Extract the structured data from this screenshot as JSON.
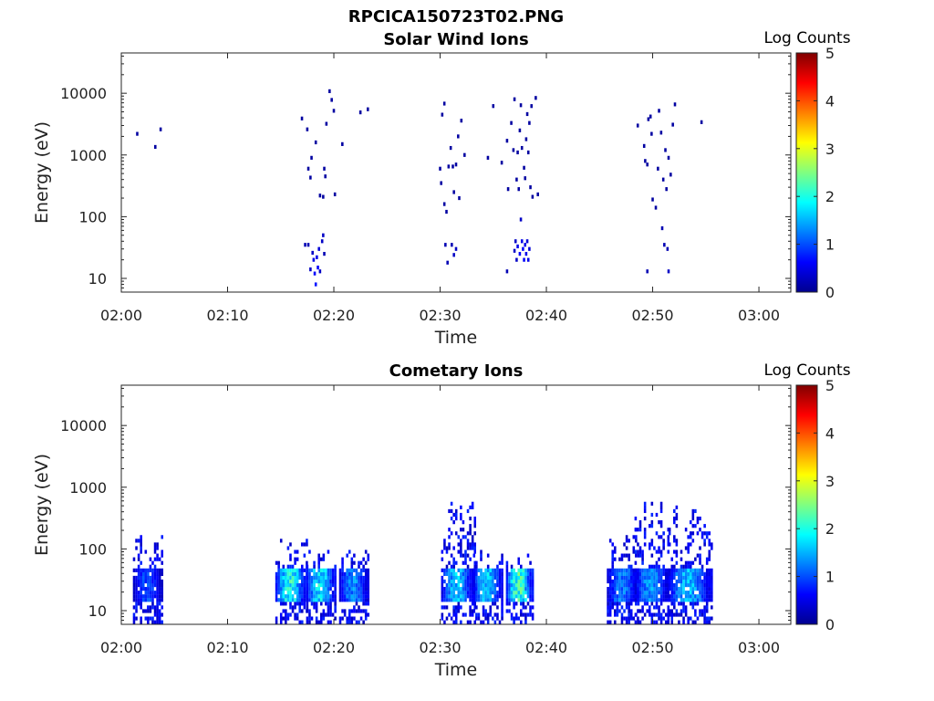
{
  "figure": {
    "filename": "RPCICA150723T02.PNG",
    "colorbar_label": "Log Counts",
    "colorbar_ticks": [
      "0",
      "1",
      "2",
      "3",
      "4",
      "5"
    ],
    "colormap": [
      "#00008f",
      "#0000ff",
      "#0080ff",
      "#00ffff",
      "#80ff80",
      "#ffff00",
      "#ff8000",
      "#ff0000",
      "#800000"
    ]
  },
  "chart_data": [
    {
      "type": "heatmap",
      "title": "Solar Wind Ions",
      "xlabel": "Time",
      "ylabel": "Energy (eV)",
      "x_ticks": [
        "02:00",
        "02:10",
        "02:20",
        "02:30",
        "02:40",
        "02:50",
        "03:00"
      ],
      "y_ticks": [
        "10",
        "100",
        "1000",
        "10000"
      ],
      "y_scale": "log",
      "ylim": [
        6,
        45000
      ],
      "xlim_minutes": [
        0,
        63
      ],
      "clim": [
        0,
        5
      ],
      "cells": [
        [
          1.5,
          2200,
          0.1
        ],
        [
          3.2,
          1350,
          0.1
        ],
        [
          3.7,
          2600,
          0.1
        ],
        [
          17.0,
          3900,
          0.1
        ],
        [
          17.5,
          2600,
          0.1
        ],
        [
          17.6,
          600,
          0.1
        ],
        [
          17.8,
          430,
          0.1
        ],
        [
          17.9,
          900,
          0.1
        ],
        [
          18.3,
          1600,
          0.1
        ],
        [
          18.7,
          220,
          0.1
        ],
        [
          19.0,
          210,
          0.1
        ],
        [
          19.1,
          600,
          0.1
        ],
        [
          19.2,
          450,
          0.1
        ],
        [
          19.3,
          3200,
          0.1
        ],
        [
          19.6,
          10800,
          0.1
        ],
        [
          19.8,
          7800,
          0.1
        ],
        [
          20.0,
          5200,
          0.1
        ],
        [
          20.1,
          230,
          0.1
        ],
        [
          20.8,
          1500,
          0.1
        ],
        [
          22.5,
          4900,
          0.1
        ],
        [
          23.2,
          5500,
          0.1
        ],
        [
          17.3,
          35,
          0.2
        ],
        [
          17.6,
          35,
          0.2
        ],
        [
          17.8,
          14,
          0.3
        ],
        [
          18.0,
          26,
          0.3
        ],
        [
          18.1,
          20,
          0.5
        ],
        [
          18.2,
          12,
          0.6
        ],
        [
          18.3,
          8,
          0.7
        ],
        [
          18.4,
          22,
          0.5
        ],
        [
          18.5,
          15,
          0.6
        ],
        [
          18.6,
          30,
          0.4
        ],
        [
          18.7,
          13,
          0.3
        ],
        [
          18.9,
          40,
          0.3
        ],
        [
          19.0,
          50,
          0.3
        ],
        [
          19.1,
          25,
          0.2
        ],
        [
          30.0,
          600,
          0.1
        ],
        [
          30.1,
          350,
          0.1
        ],
        [
          30.2,
          4500,
          0.1
        ],
        [
          30.4,
          6800,
          0.1
        ],
        [
          30.6,
          120,
          0.1
        ],
        [
          30.8,
          650,
          0.1
        ],
        [
          31.0,
          1300,
          0.1
        ],
        [
          31.2,
          650,
          0.1
        ],
        [
          31.3,
          250,
          0.1
        ],
        [
          31.5,
          700,
          0.1
        ],
        [
          31.7,
          2000,
          0.1
        ],
        [
          31.8,
          200,
          0.1
        ],
        [
          32.0,
          3600,
          0.1
        ],
        [
          32.3,
          1000,
          0.1
        ],
        [
          30.4,
          160,
          0.1
        ],
        [
          30.5,
          35,
          0.2
        ],
        [
          30.7,
          18,
          0.2
        ],
        [
          31.1,
          35,
          0.2
        ],
        [
          31.3,
          24,
          0.3
        ],
        [
          31.5,
          30,
          0.3
        ],
        [
          34.5,
          900,
          0.1
        ],
        [
          35.0,
          6200,
          0.1
        ],
        [
          35.8,
          750,
          0.1
        ],
        [
          36.3,
          1700,
          0.1
        ],
        [
          36.4,
          280,
          0.1
        ],
        [
          36.7,
          3300,
          0.1
        ],
        [
          36.9,
          1200,
          0.1
        ],
        [
          37.0,
          8000,
          0.1
        ],
        [
          37.2,
          400,
          0.1
        ],
        [
          37.3,
          1100,
          0.1
        ],
        [
          37.5,
          2500,
          0.1
        ],
        [
          37.6,
          6400,
          0.1
        ],
        [
          37.7,
          1300,
          0.1
        ],
        [
          37.9,
          620,
          0.1
        ],
        [
          38.0,
          420,
          0.1
        ],
        [
          38.1,
          1800,
          0.1
        ],
        [
          38.2,
          4600,
          0.1
        ],
        [
          38.4,
          3300,
          0.1
        ],
        [
          38.5,
          300,
          0.1
        ],
        [
          38.6,
          6200,
          0.1
        ],
        [
          38.7,
          210,
          0.1
        ],
        [
          39.0,
          8400,
          0.1
        ],
        [
          39.2,
          230,
          0.1
        ],
        [
          37.4,
          280,
          0.1
        ],
        [
          38.3,
          1100,
          0.1
        ],
        [
          36.3,
          13,
          0.2
        ],
        [
          37.1,
          40,
          0.3
        ],
        [
          37.3,
          33,
          0.5
        ],
        [
          37.5,
          25,
          0.6
        ],
        [
          37.6,
          90,
          0.3
        ],
        [
          37.7,
          40,
          0.5
        ],
        [
          37.8,
          30,
          0.6
        ],
        [
          37.9,
          20,
          0.6
        ],
        [
          38.0,
          35,
          0.5
        ],
        [
          38.1,
          25,
          0.5
        ],
        [
          38.2,
          40,
          0.4
        ],
        [
          38.3,
          20,
          0.5
        ],
        [
          38.4,
          30,
          0.4
        ],
        [
          37.2,
          20,
          0.3
        ],
        [
          37.0,
          28,
          0.3
        ],
        [
          48.6,
          3000,
          0.1
        ],
        [
          49.2,
          1400,
          0.1
        ],
        [
          49.3,
          800,
          0.1
        ],
        [
          49.5,
          700,
          0.1
        ],
        [
          49.6,
          3800,
          0.1
        ],
        [
          49.8,
          4200,
          0.1
        ],
        [
          49.9,
          2200,
          0.1
        ],
        [
          50.0,
          190,
          0.1
        ],
        [
          50.3,
          140,
          0.1
        ],
        [
          50.5,
          600,
          0.1
        ],
        [
          50.6,
          5200,
          0.1
        ],
        [
          50.8,
          2300,
          0.1
        ],
        [
          51.0,
          400,
          0.1
        ],
        [
          51.2,
          1200,
          0.1
        ],
        [
          51.3,
          280,
          0.1
        ],
        [
          51.5,
          900,
          0.1
        ],
        [
          51.7,
          480,
          0.1
        ],
        [
          51.9,
          3100,
          0.1
        ],
        [
          52.1,
          6600,
          0.1
        ],
        [
          54.6,
          3400,
          0.1
        ],
        [
          49.5,
          13,
          0.2
        ],
        [
          50.9,
          65,
          0.2
        ],
        [
          51.1,
          35,
          0.2
        ],
        [
          51.4,
          30,
          0.2
        ],
        [
          51.5,
          13,
          0.3
        ]
      ]
    },
    {
      "type": "heatmap",
      "title": "Cometary Ions",
      "xlabel": "Time",
      "ylabel": "Energy (eV)",
      "x_ticks": [
        "02:00",
        "02:10",
        "02:20",
        "02:30",
        "02:40",
        "02:50",
        "03:00"
      ],
      "y_ticks": [
        "10",
        "100",
        "1000",
        "10000"
      ],
      "y_scale": "log",
      "ylim": [
        6,
        45000
      ],
      "xlim_minutes": [
        0,
        63
      ],
      "clim": [
        0,
        5
      ],
      "bursts": [
        {
          "start": 1.2,
          "end": 4.0,
          "peak": 1.2,
          "top": 170
        },
        {
          "start": 14.6,
          "end": 17.5,
          "peak": 2.4,
          "top": 140
        },
        {
          "start": 17.5,
          "end": 20.3,
          "peak": 2.2,
          "top": 110
        },
        {
          "start": 20.6,
          "end": 23.4,
          "peak": 1.6,
          "top": 100
        },
        {
          "start": 30.2,
          "end": 33.3,
          "peak": 1.9,
          "top": 580
        },
        {
          "start": 33.2,
          "end": 36.0,
          "peak": 2.0,
          "top": 100
        },
        {
          "start": 36.3,
          "end": 38.8,
          "peak": 2.6,
          "top": 90
        },
        {
          "start": 45.8,
          "end": 48.8,
          "peak": 1.5,
          "top": 230
        },
        {
          "start": 48.4,
          "end": 51.6,
          "peak": 1.7,
          "top": 560
        },
        {
          "start": 51.6,
          "end": 55.6,
          "peak": 1.9,
          "top": 500
        }
      ]
    }
  ]
}
